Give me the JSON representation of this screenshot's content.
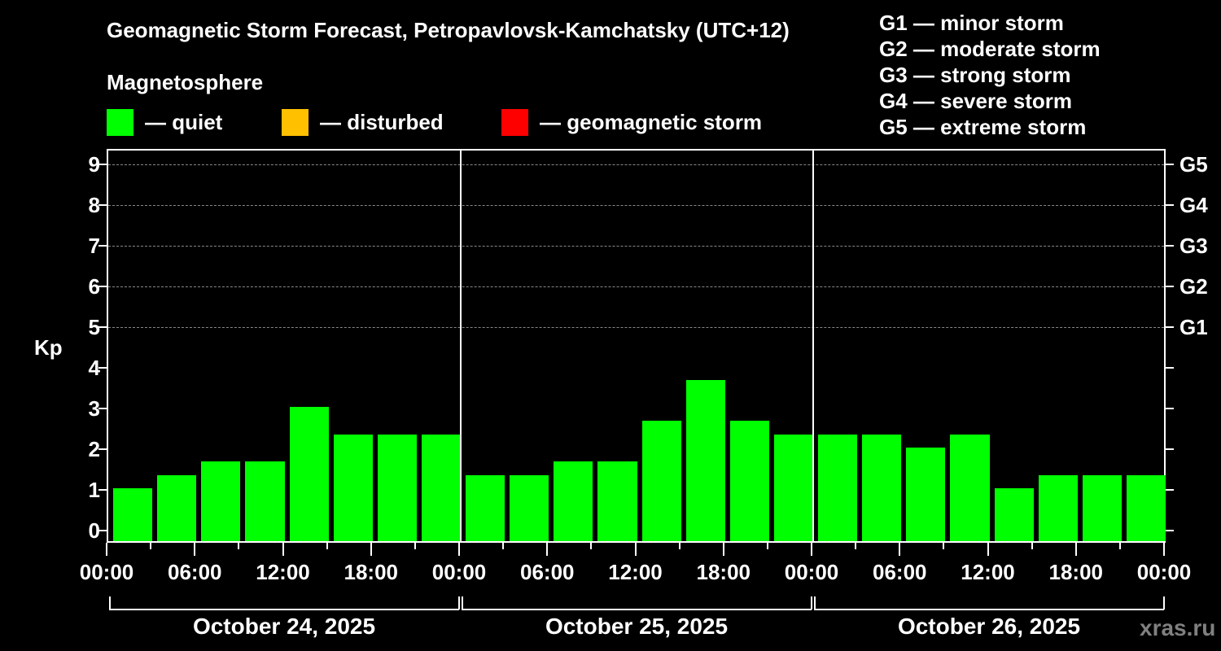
{
  "header": {
    "title": "Geomagnetic Storm Forecast, Petropavlovsk-Kamchatsky (UTC+12)",
    "subtitle": "Magnetosphere"
  },
  "legend": [
    {
      "label": "— quiet",
      "color": "#00ff00"
    },
    {
      "label": "— disturbed",
      "color": "#ffc000"
    },
    {
      "label": "— geomagnetic storm",
      "color": "#ff0000"
    }
  ],
  "g_scale_legend": [
    "G1 — minor storm",
    "G2 — moderate storm",
    "G3 — strong storm",
    "G4 — severe storm",
    "G5 — extreme storm"
  ],
  "axes": {
    "ylabel": "Kp",
    "yticks": [
      "0",
      "1",
      "2",
      "3",
      "4",
      "5",
      "6",
      "7",
      "8",
      "9"
    ],
    "right_ticks": [
      "G1",
      "G2",
      "G3",
      "G4",
      "G5"
    ],
    "xticks": [
      "00:00",
      "06:00",
      "12:00",
      "18:00",
      "00:00",
      "06:00",
      "12:00",
      "18:00",
      "00:00",
      "06:00",
      "12:00",
      "18:00",
      "00:00"
    ],
    "dates": [
      "October 24, 2025",
      "October 25, 2025",
      "October 26, 2025"
    ]
  },
  "watermark": "xras.ru",
  "chart_data": {
    "type": "bar",
    "title": "Geomagnetic Storm Forecast, Petropavlovsk-Kamchatsky (UTC+12)",
    "subtitle": "Magnetosphere",
    "xlabel": "",
    "ylabel": "Kp",
    "ylim": [
      -0.3,
      9.4
    ],
    "grid": "dashed horizontal at Kp 5-9",
    "categories": [
      "Oct 24 00:00",
      "Oct 24 03:00",
      "Oct 24 06:00",
      "Oct 24 09:00",
      "Oct 24 12:00",
      "Oct 24 15:00",
      "Oct 24 18:00",
      "Oct 24 21:00",
      "Oct 25 00:00",
      "Oct 25 03:00",
      "Oct 25 06:00",
      "Oct 25 09:00",
      "Oct 25 12:00",
      "Oct 25 15:00",
      "Oct 25 18:00",
      "Oct 25 21:00",
      "Oct 26 00:00",
      "Oct 26 03:00",
      "Oct 26 06:00",
      "Oct 26 09:00",
      "Oct 26 12:00",
      "Oct 26 15:00",
      "Oct 26 18:00",
      "Oct 26 21:00"
    ],
    "series": [
      {
        "name": "Kp",
        "values": [
          1.0,
          1.33,
          1.67,
          1.67,
          3.0,
          2.33,
          2.33,
          2.33,
          1.33,
          1.33,
          1.67,
          1.67,
          2.67,
          3.67,
          2.67,
          2.33,
          2.33,
          2.33,
          2.0,
          2.33,
          1.0,
          1.33,
          1.33,
          1.33
        ],
        "colors": "all quiet (#00ff00)"
      }
    ],
    "legend": [
      "quiet",
      "disturbed",
      "geomagnetic storm"
    ],
    "legend_colors": [
      "#00ff00",
      "#ffc000",
      "#ff0000"
    ],
    "right_axis": {
      "G1": 5,
      "G2": 6,
      "G3": 7,
      "G4": 8,
      "G5": 9
    },
    "legend_position": "top"
  }
}
